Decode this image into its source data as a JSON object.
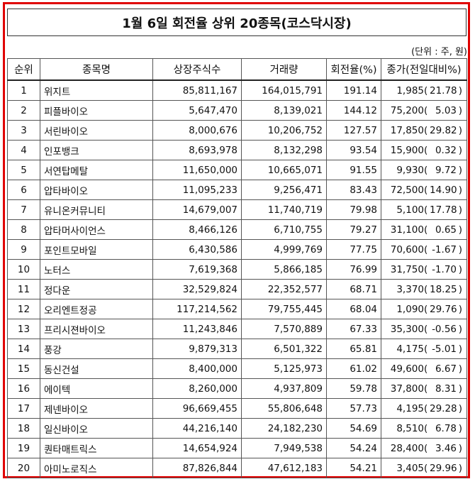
{
  "title": "1월 6일 회전율 상위 20종목(코스닥시장)",
  "unit": "(단위 : 주, 원)",
  "columns": [
    "순위",
    "종목명",
    "상장주식수",
    "거래량",
    "회전율(%)",
    "종가(전일대비%)"
  ],
  "rows": [
    {
      "rank": "1",
      "name": "위지트",
      "shares": "85,811,167",
      "volume": "164,015,791",
      "turnover": "191.14",
      "price": "1,985",
      "change": "21.78"
    },
    {
      "rank": "2",
      "name": "피플바이오",
      "shares": "5,647,470",
      "volume": "8,139,021",
      "turnover": "144.12",
      "price": "75,200",
      "change": "5.03"
    },
    {
      "rank": "3",
      "name": "서린바이오",
      "shares": "8,000,676",
      "volume": "10,206,752",
      "turnover": "127.57",
      "price": "17,850",
      "change": "29.82"
    },
    {
      "rank": "4",
      "name": "인포뱅크",
      "shares": "8,693,978",
      "volume": "8,132,298",
      "turnover": "93.54",
      "price": "15,900",
      "change": "0.32"
    },
    {
      "rank": "5",
      "name": "서연탑메탈",
      "shares": "11,650,000",
      "volume": "10,665,071",
      "turnover": "91.55",
      "price": "9,930",
      "change": "9.72"
    },
    {
      "rank": "6",
      "name": "압타바이오",
      "shares": "11,095,233",
      "volume": "9,256,471",
      "turnover": "83.43",
      "price": "72,500",
      "change": "14.90"
    },
    {
      "rank": "7",
      "name": "유니온커뮤니티",
      "shares": "14,679,007",
      "volume": "11,740,719",
      "turnover": "79.98",
      "price": "5,100",
      "change": "17.78"
    },
    {
      "rank": "8",
      "name": "압타머사이언스",
      "shares": "8,466,126",
      "volume": "6,710,755",
      "turnover": "79.27",
      "price": "31,100",
      "change": "0.65"
    },
    {
      "rank": "9",
      "name": "포인트모바일",
      "shares": "6,430,586",
      "volume": "4,999,769",
      "turnover": "77.75",
      "price": "70,600",
      "change": "-1.67"
    },
    {
      "rank": "10",
      "name": "노터스",
      "shares": "7,619,368",
      "volume": "5,866,185",
      "turnover": "76.99",
      "price": "31,750",
      "change": "-1.70"
    },
    {
      "rank": "11",
      "name": "정다운",
      "shares": "32,529,824",
      "volume": "22,352,577",
      "turnover": "68.71",
      "price": "3,370",
      "change": "18.25"
    },
    {
      "rank": "12",
      "name": "오리엔트정공",
      "shares": "117,214,562",
      "volume": "79,755,445",
      "turnover": "68.04",
      "price": "1,090",
      "change": "29.76"
    },
    {
      "rank": "13",
      "name": "프리시젼바이오",
      "shares": "11,243,846",
      "volume": "7,570,889",
      "turnover": "67.33",
      "price": "35,300",
      "change": "-0.56"
    },
    {
      "rank": "14",
      "name": "풍강",
      "shares": "9,879,313",
      "volume": "6,501,322",
      "turnover": "65.81",
      "price": "4,175",
      "change": "-5.01"
    },
    {
      "rank": "15",
      "name": "동신건설",
      "shares": "8,400,000",
      "volume": "5,125,973",
      "turnover": "61.02",
      "price": "49,600",
      "change": "6.67"
    },
    {
      "rank": "16",
      "name": "에이텍",
      "shares": "8,260,000",
      "volume": "4,937,809",
      "turnover": "59.78",
      "price": "37,800",
      "change": "8.31"
    },
    {
      "rank": "17",
      "name": "제넨바이오",
      "shares": "96,669,455",
      "volume": "55,806,648",
      "turnover": "57.73",
      "price": "4,195",
      "change": "29.28"
    },
    {
      "rank": "18",
      "name": "일신바이오",
      "shares": "44,216,140",
      "volume": "24,182,230",
      "turnover": "54.69",
      "price": "8,510",
      "change": "6.78"
    },
    {
      "rank": "19",
      "name": "퀀타매트릭스",
      "shares": "14,654,924",
      "volume": "7,949,538",
      "turnover": "54.24",
      "price": "28,400",
      "change": "3.46"
    },
    {
      "rank": "20",
      "name": "아미노로직스",
      "shares": "87,826,844",
      "volume": "47,612,183",
      "turnover": "54.21",
      "price": "3,405",
      "change": "29.96"
    }
  ]
}
